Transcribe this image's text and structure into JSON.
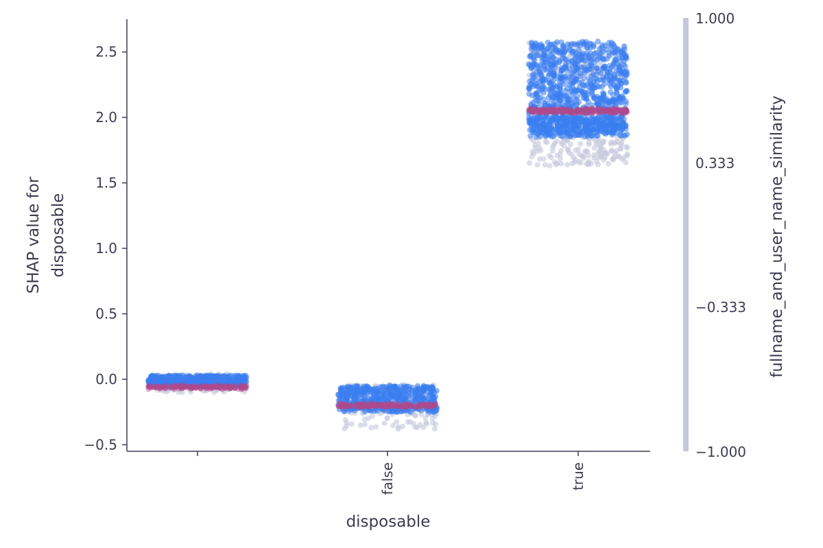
{
  "chart_data": {
    "type": "scatter",
    "title": "",
    "xlabel": "disposable",
    "ylabel": "SHAP value for\ndisposable",
    "x_categories": [
      "",
      "false",
      "true"
    ],
    "ylim": [
      -0.55,
      2.75
    ],
    "y_ticks": [
      -0.5,
      0.0,
      0.5,
      1.0,
      1.5,
      2.0,
      2.5
    ],
    "y_tick_labels": [
      "−0.5",
      "0.0",
      "0.5",
      "1.0",
      "1.5",
      "2.0",
      "2.5"
    ],
    "grid": false,
    "colorbar": {
      "label": "fullname_and_user_name_similarity",
      "range": [
        -1.0,
        1.0
      ],
      "ticks": [
        1.0,
        0.333,
        -0.333,
        -1.0
      ],
      "tick_labels": [
        "1.000",
        "0.333",
        "−0.333",
        "−1.000"
      ]
    },
    "colors": {
      "high_value": "#3a7ef0",
      "mid_value": "#b04a8c",
      "low_value": "#c5c8dc",
      "axis": "#3c3c50"
    },
    "groups": [
      {
        "category": "",
        "y_min": -0.1,
        "y_max": 0.04,
        "y_center": -0.05,
        "core_min": -0.05,
        "core_max": 0.03,
        "outlier_min": -0.1,
        "band_y": -0.06
      },
      {
        "category": "false",
        "y_min": -0.38,
        "y_max": -0.04,
        "y_center": -0.18,
        "core_min": -0.25,
        "core_max": -0.05,
        "outlier_min": -0.38,
        "band_y": -0.2
      },
      {
        "category": "true",
        "y_min": 1.63,
        "y_max": 2.58,
        "y_center": 2.05,
        "core_min": 1.85,
        "core_max": 2.3,
        "outlier_min": 1.63,
        "band_y": 2.05
      }
    ]
  }
}
